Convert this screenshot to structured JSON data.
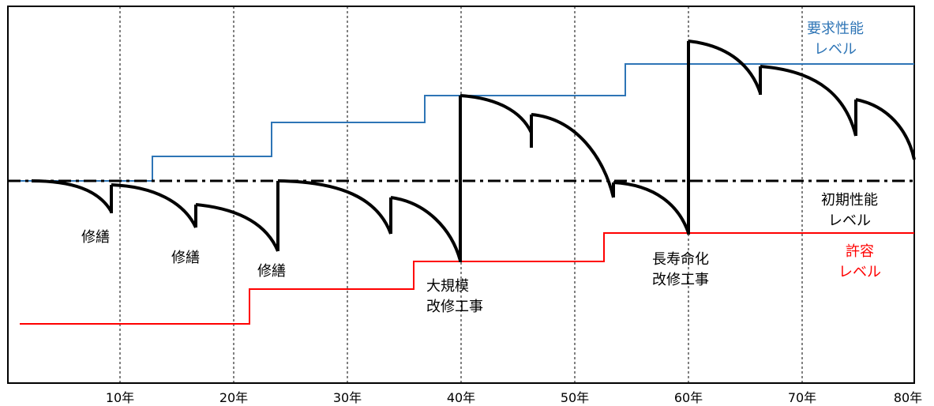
{
  "x_axis": {
    "ticks": [
      "10年",
      "20年",
      "30年",
      "40年",
      "50年",
      "60年",
      "70年",
      "80年"
    ]
  },
  "legend": {
    "required": [
      "要求性能",
      "レベル"
    ],
    "initial": [
      "初期性能",
      "レベル"
    ],
    "allowable": [
      "許容",
      "レベル"
    ]
  },
  "annotations": {
    "repair1": "修繕",
    "repair2": "修繕",
    "repair3": "修繕",
    "major_renovation": [
      "大規模",
      "改修工事"
    ],
    "life_extension": [
      "長寿命化",
      "改修工事"
    ]
  },
  "colors": {
    "required": "#2e75b6",
    "initial": "#000000",
    "allowable": "#ff0000",
    "performance": "#000000"
  }
}
